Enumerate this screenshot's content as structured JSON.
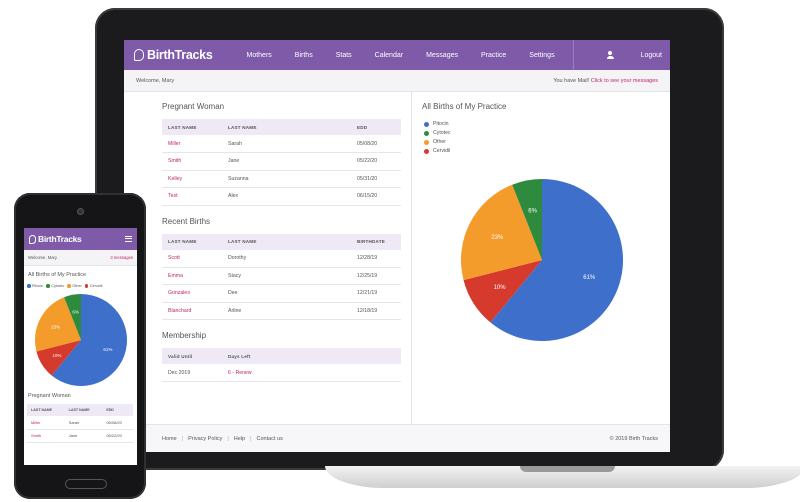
{
  "desktop": {
    "brand": "BirthTracks",
    "nav": [
      "Mothers",
      "Births",
      "Stats",
      "Calendar",
      "Messages",
      "Practice",
      "Settings"
    ],
    "logout": "Logout",
    "welcome": "Welcome, Mary",
    "mail_prefix": "You have Mail!",
    "mail_link": "Click to see your messages",
    "pregnant": {
      "title": "Pregnant Woman",
      "headers": [
        "LAST NAME",
        "LAST NAME",
        "EDD"
      ],
      "rows": [
        [
          "Miller",
          "Sarah",
          "05/08/20"
        ],
        [
          "Smith",
          "Jane",
          "05/22/20"
        ],
        [
          "Kelley",
          "Suzanna",
          "05/31/20"
        ],
        [
          "Test",
          "Alex",
          "06/15/20"
        ]
      ]
    },
    "births": {
      "title": "Recent Births",
      "headers": [
        "LAST NAME",
        "LAST NAME",
        "BIRTHDATE"
      ],
      "rows": [
        [
          "Scott",
          "Dorothy",
          "12/28/19"
        ],
        [
          "Emma",
          "Stacy",
          "12/25/19"
        ],
        [
          "Gonzales",
          "Dee",
          "12/21/19"
        ],
        [
          "Blanchard",
          "Arline",
          "12/18/19"
        ]
      ]
    },
    "membership": {
      "title": "Membership",
      "headers": [
        "Valid Until",
        "Days Left"
      ],
      "rows": [
        [
          "Dec 2019",
          "6 - Renew"
        ]
      ]
    },
    "chart_title": "All Births of My Practice",
    "footer": {
      "links": [
        "Home",
        "Privacy Policy",
        "Help",
        "Contact us"
      ],
      "copyright": "© 2019 Birth Tracks"
    }
  },
  "mobile": {
    "brand": "BirthTracks",
    "welcome": "Welcome, Mary",
    "messages": "3 messages",
    "chart_title": "All Births of My Practice",
    "pregnant": {
      "title": "Pregnant Woman",
      "headers": [
        "LAST NAME",
        "LAST NAME",
        "EDD"
      ],
      "rows": [
        [
          "Miller",
          "Sarah",
          "05/08/20"
        ],
        [
          "Smith",
          "Jane",
          "05/22/20"
        ]
      ]
    }
  },
  "colors": {
    "primary": "#7e5aa8",
    "accent": "#c2246a",
    "pitocin": "#3d6fcb",
    "cytotec": "#2e8b3e",
    "other": "#f39c2c",
    "cervidil": "#d63a2d"
  },
  "chart_data": {
    "type": "pie",
    "title": "All Births of My Practice",
    "categories": [
      "Pitocin",
      "Cytotec",
      "Other",
      "Cervidil"
    ],
    "values": [
      61,
      6,
      23,
      10
    ],
    "labels": [
      "61%",
      "6%",
      "23%",
      "10%"
    ],
    "legend": "top-left"
  }
}
